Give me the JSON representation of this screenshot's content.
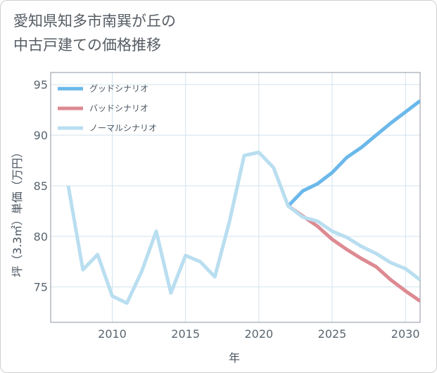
{
  "title_lines": [
    "愛知県知多市南巽が丘の",
    "中古戸建ての価格推移"
  ],
  "chart_data": {
    "type": "line",
    "title": "愛知県知多市南巽が丘の中古戸建ての価格推移",
    "xlabel": "年",
    "ylabel": "坪（3.3㎡）単価（万円）",
    "xlim": [
      2005.8,
      2031
    ],
    "ylim": [
      71.5,
      96.2
    ],
    "xticks": [
      2010,
      2015,
      2020,
      2025,
      2030
    ],
    "yticks": [
      75,
      80,
      85,
      90,
      95
    ],
    "grid": true,
    "legend_position": "top-left",
    "series": [
      {
        "name": "グッドシナリオ",
        "color": "#6bb8ea",
        "x": [
          2022,
          2023,
          2024,
          2025,
          2026,
          2027,
          2028,
          2029,
          2030,
          2031
        ],
        "y": [
          83.0,
          84.5,
          85.2,
          86.3,
          87.8,
          88.8,
          90.0,
          91.2,
          92.3,
          93.4
        ]
      },
      {
        "name": "バッドシナリオ",
        "color": "#dd8a92",
        "x": [
          2022,
          2023,
          2024,
          2025,
          2026,
          2027,
          2028,
          2029,
          2030,
          2031
        ],
        "y": [
          83.0,
          82.0,
          81.0,
          79.7,
          78.7,
          77.8,
          77.0,
          75.7,
          74.6,
          73.6
        ]
      },
      {
        "name": "ノーマルシナリオ",
        "color": "#b9def0",
        "x": [
          2007,
          2008,
          2009,
          2010,
          2011,
          2012,
          2013,
          2014,
          2015,
          2016,
          2017,
          2018,
          2019,
          2020,
          2021,
          2022,
          2023,
          2024,
          2025,
          2026,
          2027,
          2028,
          2029,
          2030,
          2031
        ],
        "y": [
          85.0,
          76.7,
          78.2,
          74.1,
          73.4,
          76.5,
          80.5,
          74.4,
          78.1,
          77.5,
          76.0,
          81.5,
          88.0,
          88.3,
          86.8,
          83.0,
          81.9,
          81.5,
          80.5,
          79.9,
          79.0,
          78.3,
          77.4,
          76.8,
          75.7
        ]
      }
    ]
  }
}
